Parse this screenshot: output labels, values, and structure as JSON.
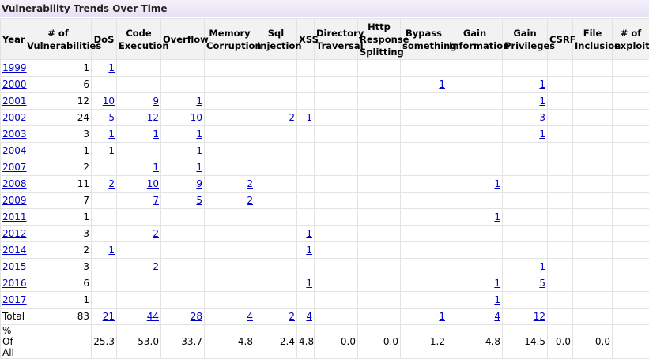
{
  "title": "Vulnerability Trends Over Time",
  "columns": [
    "Year",
    "# of Vulnerabilities",
    "DoS",
    "Code Execution",
    "Overflow",
    "Memory Corruption",
    "Sql Injection",
    "XSS",
    "Directory Traversal",
    "Http Response Splitting",
    "Bypass something",
    "Gain Information",
    "Gain Privileges",
    "CSRF",
    "File Inclusion",
    "# of exploits"
  ],
  "rows": [
    {
      "year": "1999",
      "cells": [
        "1",
        "1",
        "",
        "",
        "",
        "",
        "",
        "",
        "",
        "",
        "",
        "",
        "",
        "",
        ""
      ]
    },
    {
      "year": "2000",
      "cells": [
        "6",
        "",
        "",
        "",
        "",
        "",
        "",
        "",
        "",
        "1",
        "",
        "1",
        "",
        "",
        ""
      ]
    },
    {
      "year": "2001",
      "cells": [
        "12",
        "10",
        "9",
        "1",
        "",
        "",
        "",
        "",
        "",
        "",
        "",
        "1",
        "",
        "",
        ""
      ]
    },
    {
      "year": "2002",
      "cells": [
        "24",
        "5",
        "12",
        "10",
        "",
        "2",
        "1",
        "",
        "",
        "",
        "",
        "3",
        "",
        "",
        ""
      ]
    },
    {
      "year": "2003",
      "cells": [
        "3",
        "1",
        "1",
        "1",
        "",
        "",
        "",
        "",
        "",
        "",
        "",
        "1",
        "",
        "",
        ""
      ]
    },
    {
      "year": "2004",
      "cells": [
        "1",
        "1",
        "",
        "1",
        "",
        "",
        "",
        "",
        "",
        "",
        "",
        "",
        "",
        "",
        ""
      ]
    },
    {
      "year": "2007",
      "cells": [
        "2",
        "",
        "1",
        "1",
        "",
        "",
        "",
        "",
        "",
        "",
        "",
        "",
        "",
        "",
        ""
      ]
    },
    {
      "year": "2008",
      "cells": [
        "11",
        "2",
        "10",
        "9",
        "2",
        "",
        "",
        "",
        "",
        "",
        "1",
        "",
        "",
        "",
        ""
      ]
    },
    {
      "year": "2009",
      "cells": [
        "7",
        "",
        "7",
        "5",
        "2",
        "",
        "",
        "",
        "",
        "",
        "",
        "",
        "",
        "",
        ""
      ]
    },
    {
      "year": "2011",
      "cells": [
        "1",
        "",
        "",
        "",
        "",
        "",
        "",
        "",
        "",
        "",
        "1",
        "",
        "",
        "",
        ""
      ]
    },
    {
      "year": "2012",
      "cells": [
        "3",
        "",
        "2",
        "",
        "",
        "",
        "1",
        "",
        "",
        "",
        "",
        "",
        "",
        "",
        ""
      ]
    },
    {
      "year": "2014",
      "cells": [
        "2",
        "1",
        "",
        "",
        "",
        "",
        "1",
        "",
        "",
        "",
        "",
        "",
        "",
        "",
        ""
      ]
    },
    {
      "year": "2015",
      "cells": [
        "3",
        "",
        "2",
        "",
        "",
        "",
        "",
        "",
        "",
        "",
        "",
        "1",
        "",
        "",
        ""
      ]
    },
    {
      "year": "2016",
      "cells": [
        "6",
        "",
        "",
        "",
        "",
        "",
        "1",
        "",
        "",
        "",
        "1",
        "5",
        "",
        "",
        ""
      ]
    },
    {
      "year": "2017",
      "cells": [
        "1",
        "",
        "",
        "",
        "",
        "",
        "",
        "",
        "",
        "",
        "1",
        "",
        "",
        "",
        ""
      ]
    }
  ],
  "total": {
    "label": "Total",
    "cells": [
      "83",
      "21",
      "44",
      "28",
      "4",
      "2",
      "4",
      "",
      "",
      "1",
      "4",
      "12",
      "",
      "",
      ""
    ]
  },
  "percent": {
    "label": "% Of All",
    "cells": [
      "",
      "25.3",
      "53.0",
      "33.7",
      "4.8",
      "2.4",
      "4.8",
      "0.0",
      "0.0",
      "1.2",
      "4.8",
      "14.5",
      "0.0",
      "0.0",
      ""
    ]
  }
}
